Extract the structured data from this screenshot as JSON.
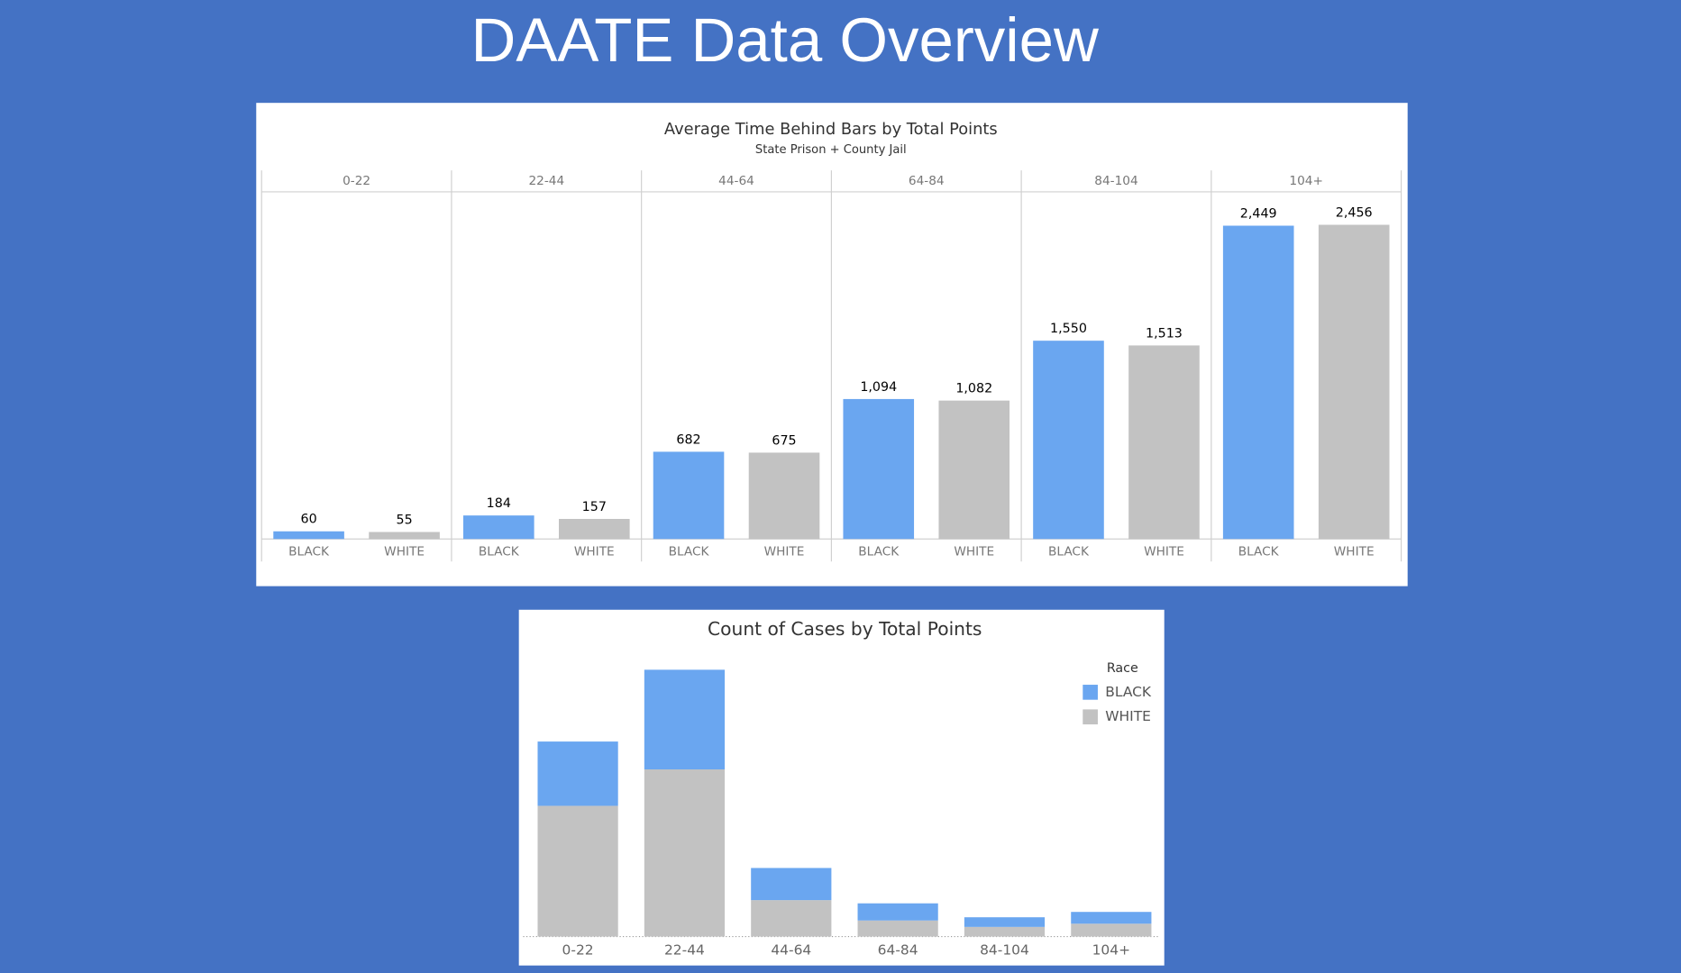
{
  "title": "DAATE Data Overview",
  "chart_data": [
    {
      "type": "grouped_panel_bar",
      "title": "Average Time Behind Bars by Total Points",
      "subtitle": "State Prison + County Jail",
      "categories": [
        "0-22",
        "22-44",
        "44-64",
        "64-84",
        "84-104",
        "104+"
      ],
      "series": [
        {
          "name": "BLACK",
          "color": "#6aa6f0",
          "values": [
            60,
            184,
            682,
            1094,
            1550,
            2449
          ],
          "value_labels": [
            "60",
            "184",
            "682",
            "1,094",
            "1,550",
            "2,449"
          ]
        },
        {
          "name": "WHITE",
          "color": "#c2c2c2",
          "values": [
            55,
            157,
            675,
            1082,
            1513,
            2456
          ],
          "value_labels": [
            "55",
            "157",
            "675",
            "1,082",
            "1,513",
            "2,456"
          ]
        }
      ]
    },
    {
      "type": "stacked_bar",
      "title": "Count of Cases by Total Points",
      "legend_title": "Race",
      "legend": "top-right",
      "categories": [
        "0-22",
        "22-44",
        "44-64",
        "64-84",
        "84-104",
        "104+"
      ],
      "series": [
        {
          "name": "WHITE",
          "color": "#c2c2c2",
          "values": [
            122,
            156,
            34,
            15,
            9,
            12
          ]
        },
        {
          "name": "BLACK",
          "color": "#6aa6f0",
          "values": [
            60,
            93,
            30,
            16,
            9,
            11
          ]
        }
      ]
    }
  ]
}
